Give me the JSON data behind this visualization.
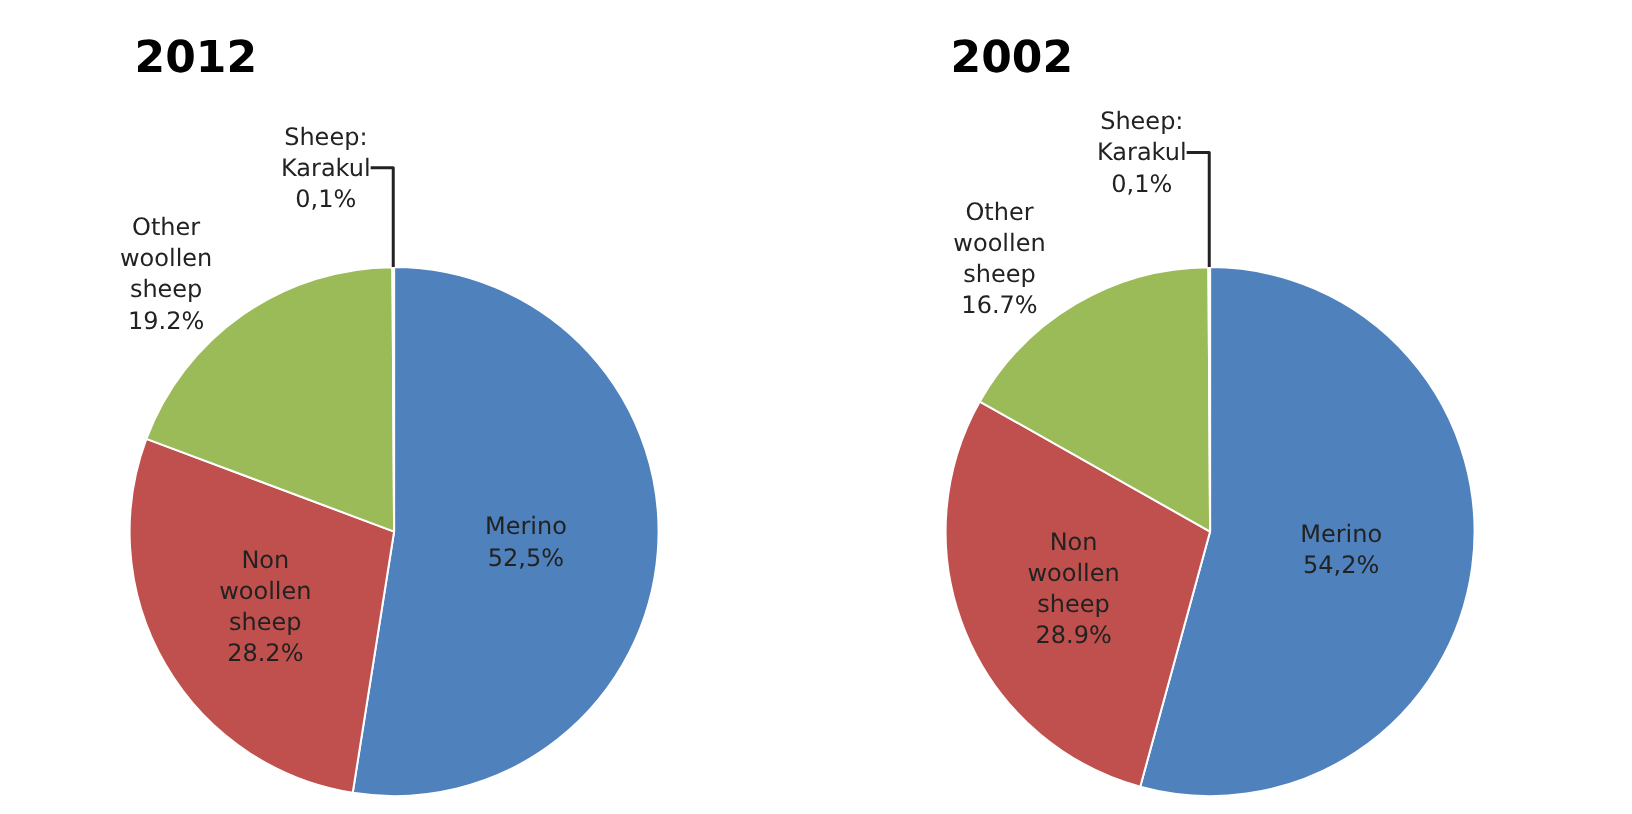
{
  "chart_data": [
    {
      "type": "pie",
      "title": "2012",
      "categories": [
        "Merino",
        "Non woollen sheep",
        "Other woollen sheep",
        "Sheep: Karakul"
      ],
      "values": [
        52.5,
        28.2,
        19.2,
        0.1
      ],
      "value_labels": [
        "52,5%",
        "28.2%",
        "19.2%",
        "0,1%"
      ],
      "colors": [
        "#4f81bd",
        "#c0504d",
        "#9bbb59",
        "#8064a2"
      ],
      "legend": false
    },
    {
      "type": "pie",
      "title": "2002",
      "categories": [
        "Merino",
        "Non woollen sheep",
        "Other woollen sheep",
        "Sheep: Karakul"
      ],
      "values": [
        54.2,
        28.9,
        16.7,
        0.1
      ],
      "value_labels": [
        "54,2%",
        "28.9%",
        "16.7%",
        "0,1%"
      ],
      "colors": [
        "#4f81bd",
        "#c0504d",
        "#9bbb59",
        "#8064a2"
      ],
      "legend": false
    }
  ]
}
